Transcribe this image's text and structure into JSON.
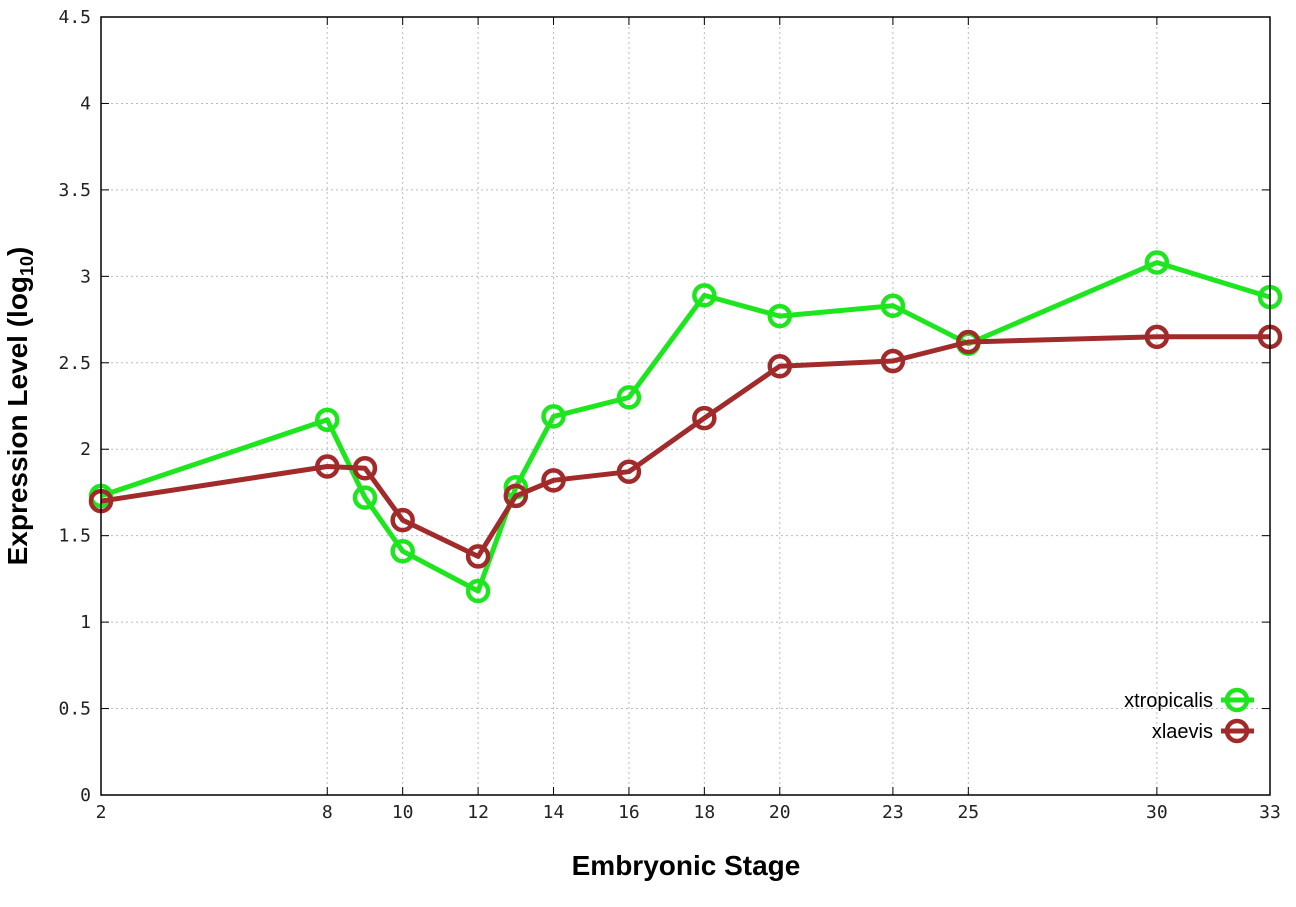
{
  "chart_data": {
    "type": "line",
    "title": "",
    "xlabel": "Embryonic Stage",
    "ylabel": {
      "main": "Expression Level (log",
      "sub": "10",
      "close": ")"
    },
    "x_ticks": [
      2,
      8,
      10,
      12,
      14,
      16,
      18,
      20,
      23,
      25,
      30,
      33
    ],
    "y_ticks": [
      "0",
      "0.5",
      "1",
      "1.5",
      "2",
      "2.5",
      "3",
      "3.5",
      "4",
      "4.5"
    ],
    "xlim": [
      2,
      33
    ],
    "ylim": [
      0,
      4.5
    ],
    "grid": true,
    "legend_position": "bottom-right",
    "series": [
      {
        "name": "xtropicalis",
        "color": "#1ee61e",
        "x": [
          2,
          8,
          9,
          10,
          12,
          13,
          14,
          16,
          18,
          20,
          23,
          25,
          30,
          33
        ],
        "values": [
          1.73,
          2.17,
          1.72,
          1.41,
          1.18,
          1.78,
          2.19,
          2.3,
          2.89,
          2.77,
          2.83,
          2.61,
          3.08,
          2.88
        ]
      },
      {
        "name": "xlaevis",
        "color": "#a12b2b",
        "x": [
          2,
          8,
          9,
          10,
          12,
          13,
          14,
          16,
          18,
          20,
          23,
          25,
          30,
          33
        ],
        "values": [
          1.7,
          1.9,
          1.89,
          1.59,
          1.38,
          1.73,
          1.82,
          1.87,
          2.18,
          2.48,
          2.51,
          2.62,
          2.65,
          2.65
        ]
      }
    ]
  }
}
